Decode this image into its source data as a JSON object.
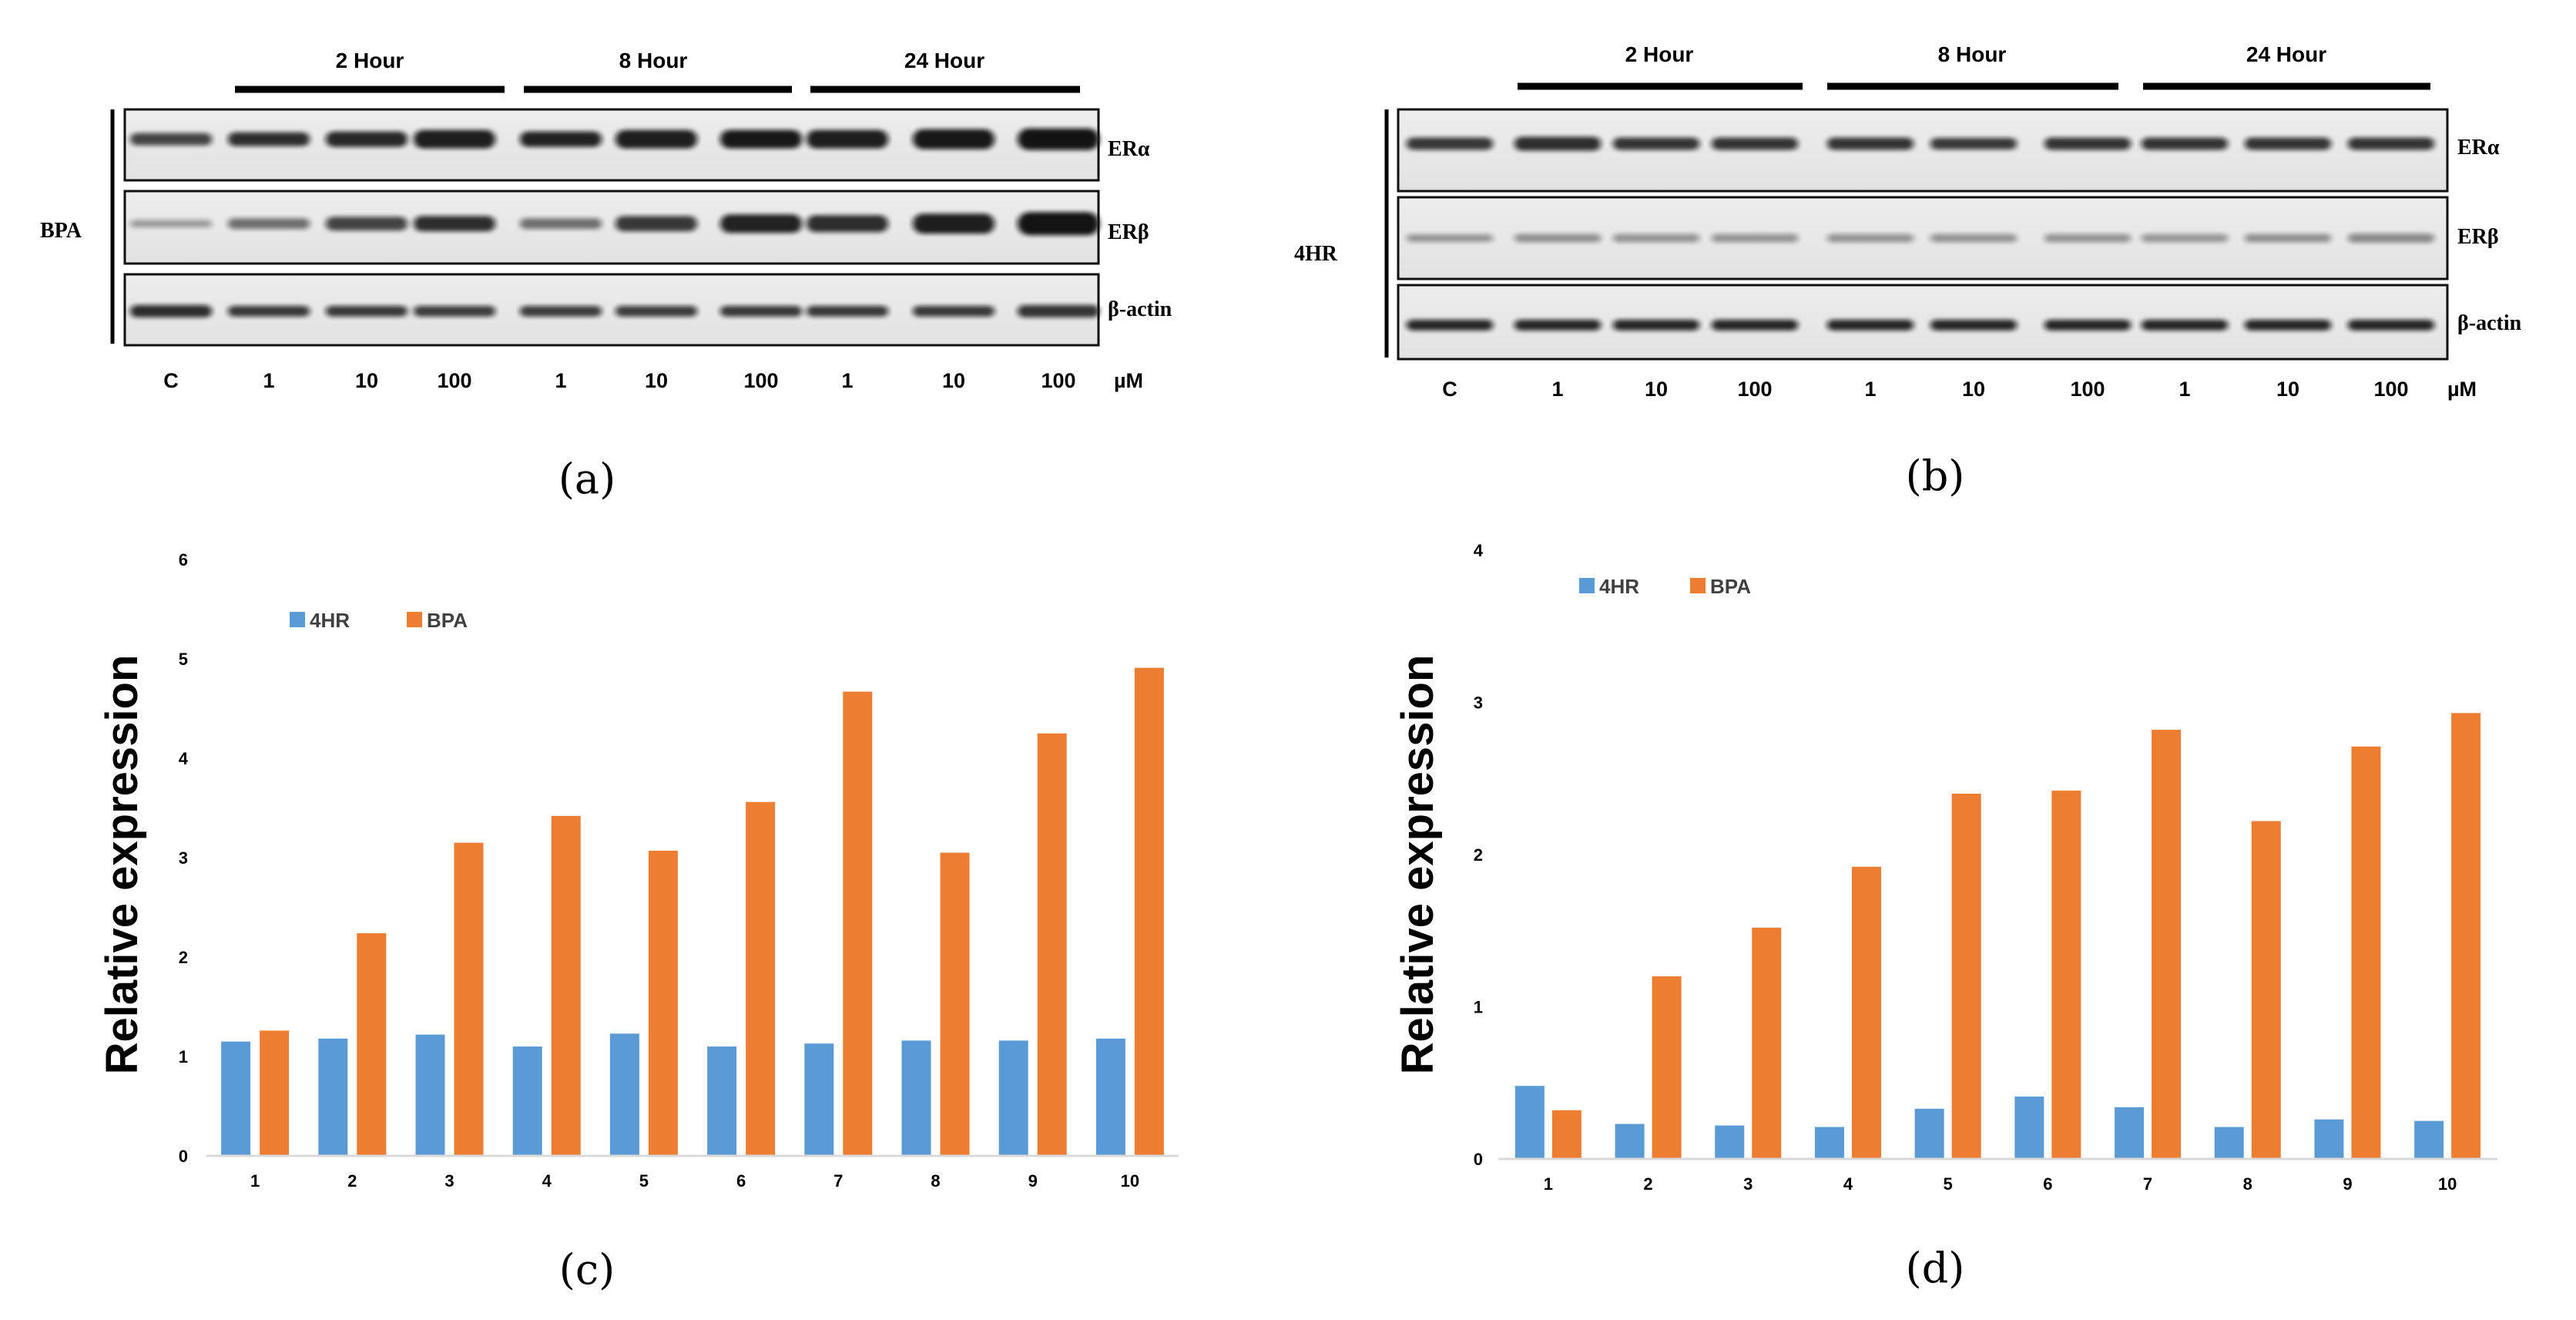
{
  "blot_a": {
    "group_label": "BPA",
    "time_headers": [
      "2 Hour",
      "8 Hour",
      "24 Hour"
    ],
    "rows": [
      "ERα",
      "ERβ",
      "β-actin"
    ],
    "lanes": [
      "C",
      "1",
      "10",
      "100",
      "1",
      "10",
      "100",
      "1",
      "10",
      "100"
    ],
    "unit": "µM",
    "caption": "(a)"
  },
  "blot_b": {
    "group_label": "4HR",
    "time_headers": [
      "2 Hour",
      "8 Hour",
      "24 Hour"
    ],
    "rows": [
      "ERα",
      "ERβ",
      "β-actin"
    ],
    "lanes": [
      "C",
      "1",
      "10",
      "100",
      "1",
      "10",
      "100",
      "1",
      "10",
      "100"
    ],
    "unit": "µM",
    "caption": "(b)"
  },
  "colors": {
    "4HR": "#5b9bd5",
    "BPA": "#ed7d31"
  },
  "chart_data": [
    {
      "type": "bar",
      "caption": "(c)",
      "categories": [
        "1",
        "2",
        "3",
        "4",
        "5",
        "6",
        "7",
        "8",
        "9",
        "10"
      ],
      "series": [
        {
          "name": "4HR",
          "values": [
            1.15,
            1.18,
            1.22,
            1.1,
            1.23,
            1.1,
            1.13,
            1.16,
            1.16,
            1.18
          ]
        },
        {
          "name": "BPA",
          "values": [
            1.26,
            2.24,
            3.15,
            3.42,
            3.07,
            3.56,
            4.67,
            3.05,
            4.25,
            4.91
          ]
        }
      ],
      "ylabel": "Relative expression",
      "ylim": [
        0,
        6
      ],
      "yticks": [
        "0",
        "1",
        "2",
        "3",
        "4",
        "5",
        "6"
      ],
      "legend": "top-left",
      "grid": false
    },
    {
      "type": "bar",
      "caption": "(d)",
      "categories": [
        "1",
        "2",
        "3",
        "4",
        "5",
        "6",
        "7",
        "8",
        "9",
        "10"
      ],
      "series": [
        {
          "name": "4HR",
          "values": [
            0.48,
            0.23,
            0.22,
            0.21,
            0.33,
            0.41,
            0.34,
            0.21,
            0.26,
            0.25
          ]
        },
        {
          "name": "BPA",
          "values": [
            0.32,
            1.2,
            1.52,
            1.92,
            2.4,
            2.42,
            2.82,
            2.22,
            2.71,
            2.93
          ]
        }
      ],
      "ylabel": "Relative expression",
      "ylim": [
        0,
        4
      ],
      "yticks": [
        "0",
        "1",
        "2",
        "3",
        "4"
      ],
      "legend": "top-left",
      "grid": false
    }
  ]
}
